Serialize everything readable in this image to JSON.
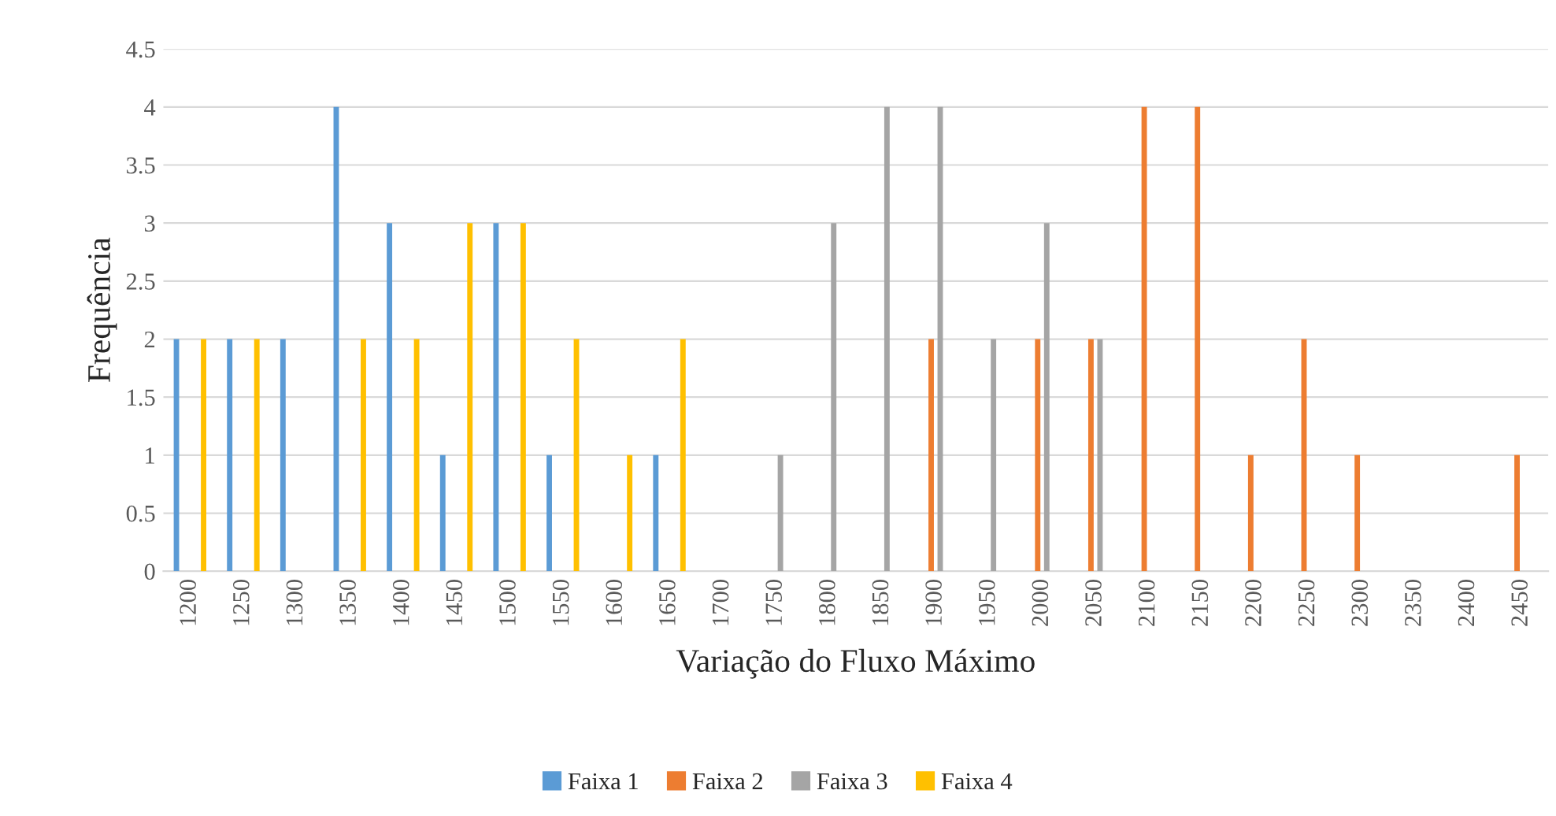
{
  "chart_data": {
    "type": "bar",
    "xlabel": "Variação do Fluxo Máximo",
    "ylabel": "Frequência",
    "categories": [
      "1200",
      "1250",
      "1300",
      "1350",
      "1400",
      "1450",
      "1500",
      "1550",
      "1600",
      "1650",
      "1700",
      "1750",
      "1800",
      "1850",
      "1900",
      "1950",
      "2000",
      "2050",
      "2100",
      "2150",
      "2200",
      "2250",
      "2300",
      "2350",
      "2400",
      "2450"
    ],
    "series": [
      {
        "name": "Faixa 1",
        "color": "#5b9bd5",
        "values": [
          2,
          2,
          2,
          4,
          3,
          1,
          3,
          1,
          null,
          1,
          null,
          null,
          null,
          null,
          null,
          null,
          null,
          null,
          null,
          null,
          null,
          null,
          null,
          null,
          null,
          null
        ]
      },
      {
        "name": "Faixa 2",
        "color": "#ed7d31",
        "values": [
          null,
          null,
          null,
          null,
          null,
          null,
          null,
          null,
          null,
          null,
          null,
          null,
          null,
          null,
          2,
          null,
          2,
          2,
          4,
          4,
          1,
          2,
          1,
          null,
          null,
          1
        ]
      },
      {
        "name": "Faixa 3",
        "color": "#a5a5a5",
        "values": [
          null,
          null,
          null,
          null,
          null,
          null,
          null,
          null,
          null,
          null,
          null,
          1,
          3,
          4,
          4,
          2,
          3,
          2,
          null,
          null,
          null,
          null,
          null,
          null,
          null,
          null
        ]
      },
      {
        "name": "Faixa 4",
        "color": "#ffc000",
        "values": [
          2,
          2,
          null,
          2,
          2,
          3,
          3,
          2,
          1,
          2,
          null,
          null,
          null,
          null,
          null,
          null,
          null,
          null,
          null,
          null,
          null,
          null,
          null,
          null,
          null,
          null
        ]
      }
    ],
    "ylim": [
      0,
      4.5
    ],
    "yticks": [
      0,
      0.5,
      1,
      1.5,
      2,
      2.5,
      3,
      3.5,
      4,
      4.5
    ],
    "grid": "y",
    "legend": "bottom"
  }
}
